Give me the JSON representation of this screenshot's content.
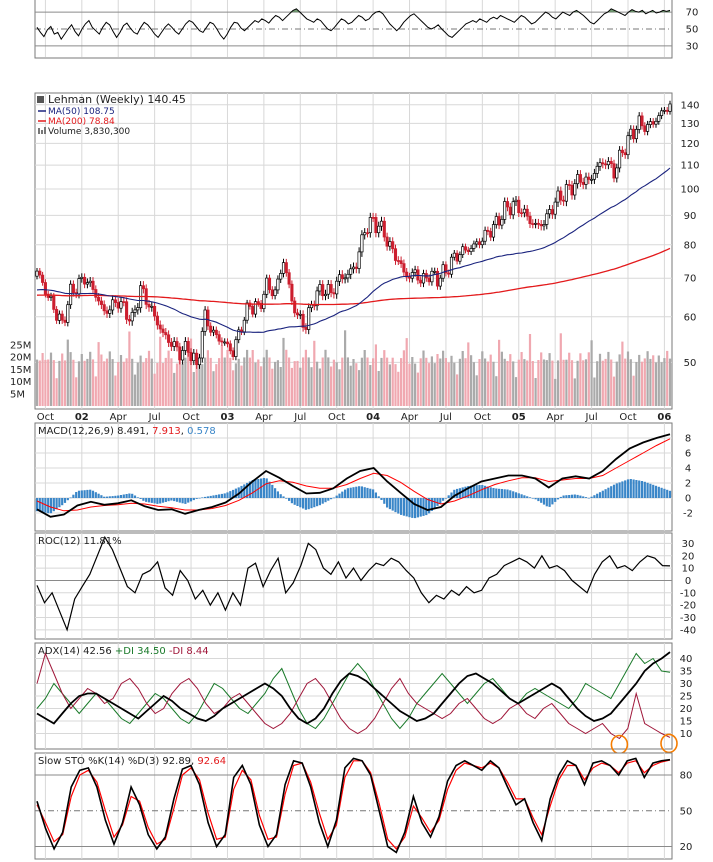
{
  "colors": {
    "up": "#000000",
    "down": "#cc1f2f",
    "ma50": "#1a237e",
    "ma200": "#e31a1c",
    "vol_up": "#aaaaaa",
    "vol_down": "#f0a8b0",
    "macd_line": "#000000",
    "macd_signal": "#ff0000",
    "macd_hist": "#3a86c8",
    "adx": "#000000",
    "plus_di": "#1a7a2a",
    "minus_di": "#a0173a",
    "sto_k": "#000000",
    "sto_d": "#ff0000",
    "rsi_fill": "#5c8a5c",
    "highlight": "#f57c00"
  },
  "chart_data": [
    {
      "panel": "rsi",
      "type": "line",
      "title": "",
      "y_ticks": [
        70,
        50,
        30
      ],
      "ylim": [
        18,
        82
      ],
      "reference_lines": [
        70,
        50,
        30
      ],
      "shaded_above": 70,
      "values": [
        52,
        46,
        41,
        49,
        53,
        44,
        46,
        38,
        44,
        50,
        55,
        47,
        42,
        50,
        56,
        60,
        52,
        48,
        44,
        52,
        58,
        55,
        47,
        40,
        46,
        54,
        57,
        51,
        46,
        44,
        52,
        58,
        55,
        50,
        44,
        40,
        46,
        52,
        56,
        52,
        47,
        44,
        50,
        56,
        60,
        58,
        53,
        48,
        46,
        52,
        58,
        56,
        50,
        43,
        38,
        44,
        52,
        58,
        57,
        51,
        48,
        52,
        56,
        60,
        58,
        62,
        60,
        57,
        62,
        66,
        64,
        60,
        64,
        68,
        72,
        74,
        70,
        66,
        62,
        60,
        58,
        62,
        60,
        55,
        50,
        48,
        52,
        57,
        62,
        60,
        56,
        58,
        62,
        66,
        64,
        60,
        62,
        67,
        70,
        71,
        68,
        62,
        56,
        52,
        48,
        52,
        58,
        62,
        66,
        68,
        64,
        60,
        56,
        52,
        50,
        52,
        55,
        50,
        46,
        42,
        40,
        44,
        48,
        52,
        56,
        58,
        60,
        58,
        62,
        60,
        58,
        62,
        64,
        62,
        66,
        64,
        62,
        60,
        58,
        62,
        66,
        64,
        60,
        56,
        58,
        62,
        66,
        70,
        68,
        64,
        62,
        66,
        70,
        68,
        66,
        70,
        72,
        69,
        66,
        62,
        58,
        56,
        60,
        64,
        68,
        70,
        74,
        72,
        70,
        68,
        66,
        70,
        73,
        71,
        70,
        72,
        68,
        70,
        72,
        69,
        70,
        72,
        71,
        72
      ]
    },
    {
      "panel": "price",
      "type": "candlestick",
      "title": "Lehman (Weekly) 140.45",
      "legend": [
        {
          "name": "MA(50) 108.75",
          "color": "#1a237e"
        },
        {
          "name": "MA(200) 78.84",
          "color": "#e31a1c"
        },
        {
          "name": "Volume 3,830,300",
          "color": "#777777"
        }
      ],
      "scale": "log",
      "y_ticks": [
        140,
        130,
        120,
        110,
        100,
        90,
        80,
        70,
        60,
        50
      ],
      "ylim": [
        42,
        145
      ],
      "x_ticks": [
        "Oct",
        "02",
        "Apr",
        "Jul",
        "Oct",
        "03",
        "Apr",
        "Jul",
        "Oct",
        "04",
        "Apr",
        "Jul",
        "Oct",
        "05",
        "Apr",
        "Jul",
        "Oct",
        "06"
      ],
      "x_tick_weeks": [
        3,
        16,
        29,
        42,
        55,
        68,
        81,
        94,
        107,
        120,
        133,
        146,
        159,
        172,
        185,
        198,
        211,
        224
      ],
      "bold_x_ticks": [
        "02",
        "03",
        "04",
        "05",
        "06"
      ],
      "volume_ticks": [
        "25M",
        "20M",
        "15M",
        "10M",
        "5M"
      ],
      "volume_ylim": [
        0,
        45
      ],
      "anchors": {
        "weeks": [
          0,
          4,
          9,
          12,
          17,
          20,
          24,
          29,
          34,
          37,
          40,
          42,
          45,
          48,
          51,
          54,
          57,
          60,
          63,
          67,
          70,
          73,
          76,
          79,
          82,
          85,
          88,
          91,
          93,
          96,
          99,
          102,
          105,
          108,
          111,
          114,
          117,
          120,
          122,
          124,
          126,
          128,
          130,
          133,
          135,
          137,
          140,
          143,
          146,
          149,
          152,
          155,
          158,
          161,
          164,
          167,
          170,
          173,
          176,
          179,
          182,
          185,
          188,
          191,
          194,
          197,
          200,
          203,
          206,
          209,
          212,
          215,
          218,
          221,
          224,
          226
        ],
        "close": [
          72,
          65,
          58,
          66,
          70,
          67,
          61,
          64,
          59,
          67,
          63,
          60,
          56,
          54,
          52,
          53,
          49,
          60,
          56,
          54,
          52,
          58,
          63,
          62,
          68,
          66,
          75,
          64,
          60,
          58,
          65,
          67,
          66,
          70,
          71,
          74,
          85,
          88,
          86,
          84,
          79,
          77,
          73,
          70,
          72,
          69,
          71,
          70,
          72,
          76,
          78,
          79,
          81,
          84,
          87,
          92,
          94,
          92,
          88,
          86,
          89,
          95,
          98,
          101,
          104,
          103,
          109,
          112,
          107,
          116,
          124,
          130,
          128,
          132,
          137,
          140.45
        ]
      },
      "ma50_final": 108.75,
      "ma200_final": 78.84
    },
    {
      "panel": "macd",
      "type": "line+bar",
      "title": "MACD(12,26,9) 8.491, 7.913, 0.578",
      "series_names": [
        "MACD",
        "Signal",
        "Histogram"
      ],
      "final_values": [
        8.491,
        7.913,
        0.578
      ],
      "y_ticks": [
        8,
        6,
        4,
        2,
        0,
        -2
      ],
      "ylim": [
        -4,
        9.6
      ],
      "macd": [
        -1.5,
        -2.5,
        -2.2,
        -1.0,
        -0.5,
        -0.9,
        -0.7,
        -0.3,
        -1.1,
        -1.6,
        -1.5,
        -2.1,
        -1.6,
        -1.2,
        -0.6,
        0.6,
        2.2,
        3.6,
        2.7,
        1.6,
        0.6,
        0.7,
        1.3,
        2.6,
        3.6,
        4.0,
        2.2,
        0.7,
        -0.8,
        -1.6,
        -1.2,
        0.3,
        1.3,
        2.2,
        2.6,
        3.0,
        3.0,
        2.6,
        1.4,
        2.6,
        2.9,
        2.6,
        3.6,
        5.2,
        6.6,
        7.4,
        8.0,
        8.5
      ],
      "signal": [
        -0.4,
        -1.2,
        -1.7,
        -1.6,
        -1.2,
        -1.0,
        -0.9,
        -0.7,
        -0.8,
        -1.1,
        -1.3,
        -1.6,
        -1.6,
        -1.4,
        -1.0,
        -0.3,
        0.7,
        1.9,
        2.3,
        2.1,
        1.6,
        1.3,
        1.3,
        1.8,
        2.6,
        3.3,
        3.0,
        2.1,
        0.9,
        -0.2,
        -0.8,
        -0.4,
        0.3,
        1.1,
        1.8,
        2.3,
        2.7,
        2.7,
        2.2,
        2.4,
        2.6,
        2.6,
        3.0,
        4.0,
        5.0,
        6.0,
        7.0,
        7.9
      ]
    },
    {
      "panel": "roc",
      "type": "line",
      "title": "ROC(12) 11.81%",
      "final_value": 11.81,
      "y_ticks": [
        30,
        20,
        10,
        0,
        -10,
        -20,
        -30,
        -40
      ],
      "ylim": [
        -45,
        36
      ],
      "values": [
        -4,
        -18,
        -10,
        -25,
        -40,
        -15,
        -5,
        5,
        20,
        35,
        25,
        10,
        -5,
        -10,
        5,
        8,
        15,
        -6,
        -12,
        8,
        0,
        -15,
        -8,
        -20,
        -10,
        -24,
        -10,
        -20,
        10,
        14,
        -5,
        8,
        18,
        -10,
        -2,
        12,
        30,
        25,
        10,
        5,
        15,
        2,
        10,
        0,
        8,
        14,
        12,
        18,
        15,
        8,
        2,
        -10,
        -18,
        -12,
        -15,
        -8,
        -12,
        -5,
        -10,
        -8,
        2,
        5,
        12,
        15,
        18,
        15,
        10,
        20,
        10,
        12,
        8,
        0,
        -5,
        -10,
        5,
        15,
        20,
        10,
        12,
        8,
        15,
        20,
        18,
        12,
        11.81
      ]
    },
    {
      "panel": "adx",
      "type": "line",
      "title": "ADX(14) 42.56 +DI 34.50 -DI 8.44",
      "labels": {
        "adx": "ADX(14) 42.56",
        "plus_di": "+DI 34.50",
        "minus_di": "-DI 8.44"
      },
      "y_ticks": [
        40,
        35,
        30,
        25,
        20,
        15,
        10
      ],
      "ylim": [
        5,
        45
      ],
      "adx": [
        18,
        16,
        14,
        18,
        22,
        25,
        26,
        26,
        24,
        22,
        20,
        18,
        16,
        19,
        22,
        25,
        23,
        20,
        18,
        16,
        15,
        17,
        20,
        22,
        24,
        26,
        28,
        30,
        28,
        25,
        20,
        16,
        14,
        16,
        20,
        26,
        31,
        34,
        33,
        31,
        28,
        25,
        22,
        19,
        17,
        15,
        16,
        18,
        22,
        26,
        30,
        33,
        34,
        32,
        30,
        27,
        24,
        22,
        24,
        26,
        28,
        30,
        28,
        24,
        20,
        17,
        15,
        16,
        18,
        22,
        26,
        30,
        35,
        38,
        40,
        42.56
      ],
      "plus_di": [
        20,
        24,
        30,
        26,
        22,
        18,
        22,
        26,
        24,
        20,
        16,
        14,
        18,
        22,
        26,
        24,
        20,
        16,
        14,
        18,
        24,
        30,
        28,
        24,
        20,
        18,
        22,
        26,
        32,
        36,
        28,
        20,
        14,
        12,
        16,
        22,
        28,
        34,
        38,
        34,
        28,
        22,
        16,
        12,
        16,
        22,
        26,
        30,
        34,
        30,
        26,
        22,
        26,
        30,
        32,
        28,
        24,
        22,
        26,
        28,
        26,
        24,
        22,
        20,
        24,
        30,
        28,
        26,
        24,
        30,
        36,
        42,
        38,
        40,
        35,
        34.5
      ],
      "minus_di": [
        30,
        42,
        34,
        26,
        20,
        24,
        28,
        26,
        22,
        24,
        30,
        32,
        28,
        22,
        18,
        20,
        26,
        30,
        32,
        28,
        22,
        18,
        20,
        24,
        26,
        22,
        18,
        14,
        12,
        14,
        18,
        24,
        30,
        32,
        28,
        22,
        16,
        12,
        10,
        12,
        16,
        22,
        28,
        32,
        26,
        22,
        20,
        18,
        16,
        18,
        22,
        24,
        20,
        16,
        14,
        16,
        20,
        22,
        18,
        16,
        20,
        22,
        18,
        14,
        12,
        10,
        12,
        14,
        10,
        8,
        12,
        26,
        14,
        12,
        10,
        8.44
      ],
      "highlights": [
        "ADX -DI low near Nov 2005",
        "ADX -DI low at latest bar"
      ]
    },
    {
      "panel": "sto",
      "type": "line",
      "title": "Slow STO %K(14) %D(3) 92.89, 92.64",
      "labels": {
        "k": "Slow STO %K(14) %D(3) 92.89,",
        "d": "92.64"
      },
      "y_ticks": [
        80,
        50,
        20
      ],
      "ylim": [
        12,
        96
      ],
      "reference_lines": [
        80,
        50,
        20
      ],
      "k": [
        58,
        35,
        18,
        32,
        70,
        84,
        86,
        70,
        42,
        22,
        40,
        70,
        55,
        30,
        18,
        28,
        60,
        85,
        88,
        72,
        40,
        20,
        30,
        78,
        88,
        72,
        38,
        20,
        30,
        72,
        92,
        90,
        70,
        40,
        20,
        42,
        86,
        94,
        92,
        80,
        50,
        20,
        15,
        32,
        62,
        40,
        28,
        45,
        75,
        88,
        92,
        88,
        84,
        92,
        86,
        70,
        55,
        60,
        40,
        25,
        60,
        80,
        92,
        88,
        72,
        90,
        92,
        88,
        80,
        92,
        94,
        78,
        90,
        92,
        92.89
      ],
      "d": [
        55,
        40,
        24,
        30,
        62,
        80,
        84,
        74,
        50,
        28,
        38,
        62,
        58,
        36,
        22,
        26,
        52,
        80,
        86,
        76,
        48,
        26,
        28,
        68,
        84,
        76,
        46,
        26,
        28,
        64,
        88,
        90,
        74,
        48,
        26,
        38,
        78,
        92,
        92,
        82,
        56,
        26,
        18,
        28,
        54,
        44,
        32,
        42,
        68,
        84,
        90,
        88,
        86,
        90,
        86,
        74,
        60,
        60,
        44,
        30,
        54,
        76,
        88,
        88,
        76,
        86,
        90,
        88,
        82,
        90,
        92,
        82,
        88,
        91,
        92.64
      ]
    }
  ]
}
